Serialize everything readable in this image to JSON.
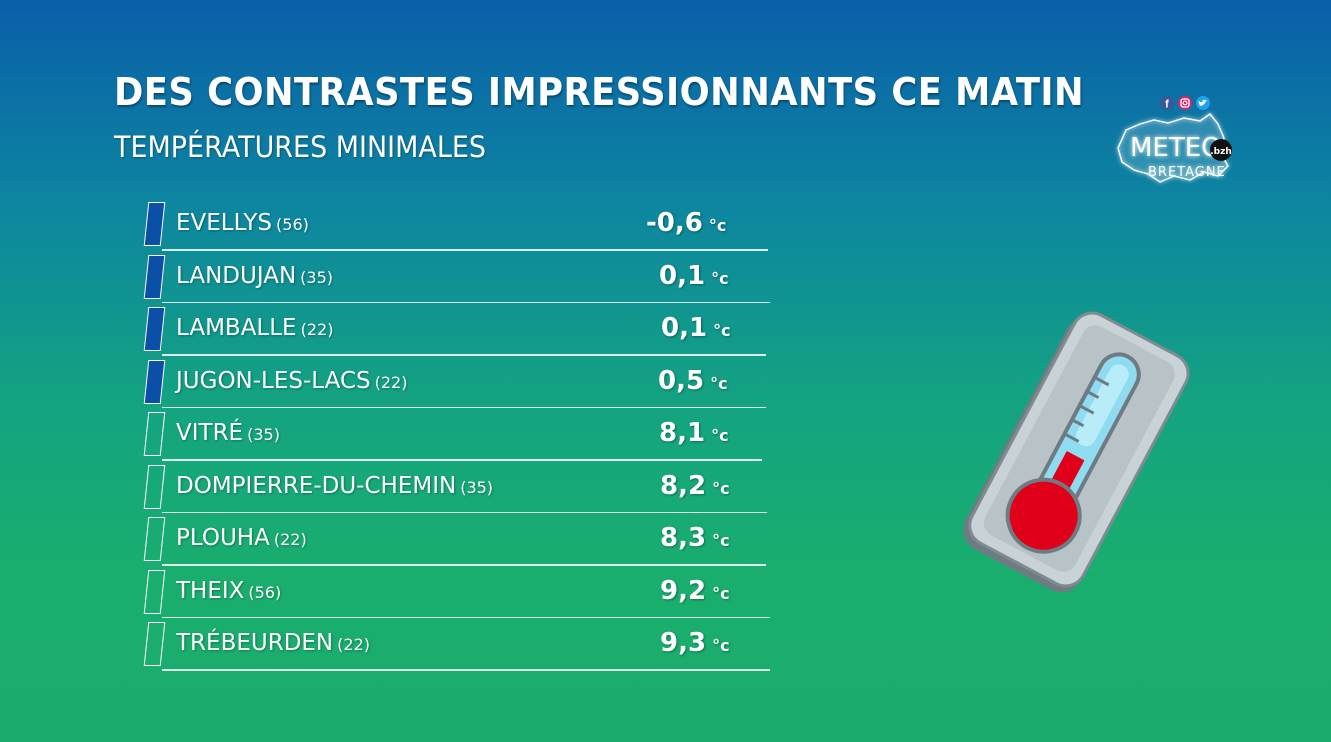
{
  "header": {
    "title": "DES CONTRASTES IMPRESSIONNANTS CE MATIN",
    "subtitle": "TEMPÉRATURES MINIMALES"
  },
  "logo": {
    "name": "METEO",
    "suffix": ".bzh",
    "sub": "BRETAGNE",
    "social_icons": [
      "facebook-icon",
      "instagram-icon",
      "twitter-icon"
    ]
  },
  "colors": {
    "cold_marker": "#0b4fa6",
    "thermometer_bulb": "#e0001a"
  },
  "stations": [
    {
      "city": "EVELLYS",
      "dept": "(56)",
      "temp": "-0,6",
      "unit": "°c",
      "kind": "cold"
    },
    {
      "city": "LANDUJAN",
      "dept": "(35)",
      "temp": "0,1",
      "unit": "°c",
      "kind": "cold"
    },
    {
      "city": "LAMBALLE",
      "dept": "(22)",
      "temp": "0,1",
      "unit": "°c",
      "kind": "cold"
    },
    {
      "city": "JUGON-LES-LACS",
      "dept": "(22)",
      "temp": "0,5",
      "unit": "°c",
      "kind": "cold"
    },
    {
      "city": "VITRÉ",
      "dept": "(35)",
      "temp": "8,1",
      "unit": "°c",
      "kind": "mild"
    },
    {
      "city": "DOMPIERRE-DU-CHEMIN",
      "dept": "(35)",
      "temp": "8,2",
      "unit": "°c",
      "kind": "mild"
    },
    {
      "city": "PLOUHA",
      "dept": "(22)",
      "temp": "8,3",
      "unit": "°c",
      "kind": "mild"
    },
    {
      "city": "THEIX",
      "dept": "(56)",
      "temp": "9,2",
      "unit": "°c",
      "kind": "mild"
    },
    {
      "city": "TRÉBEURDEN",
      "dept": "(22)",
      "temp": "9,3",
      "unit": "°c",
      "kind": "mild"
    }
  ]
}
